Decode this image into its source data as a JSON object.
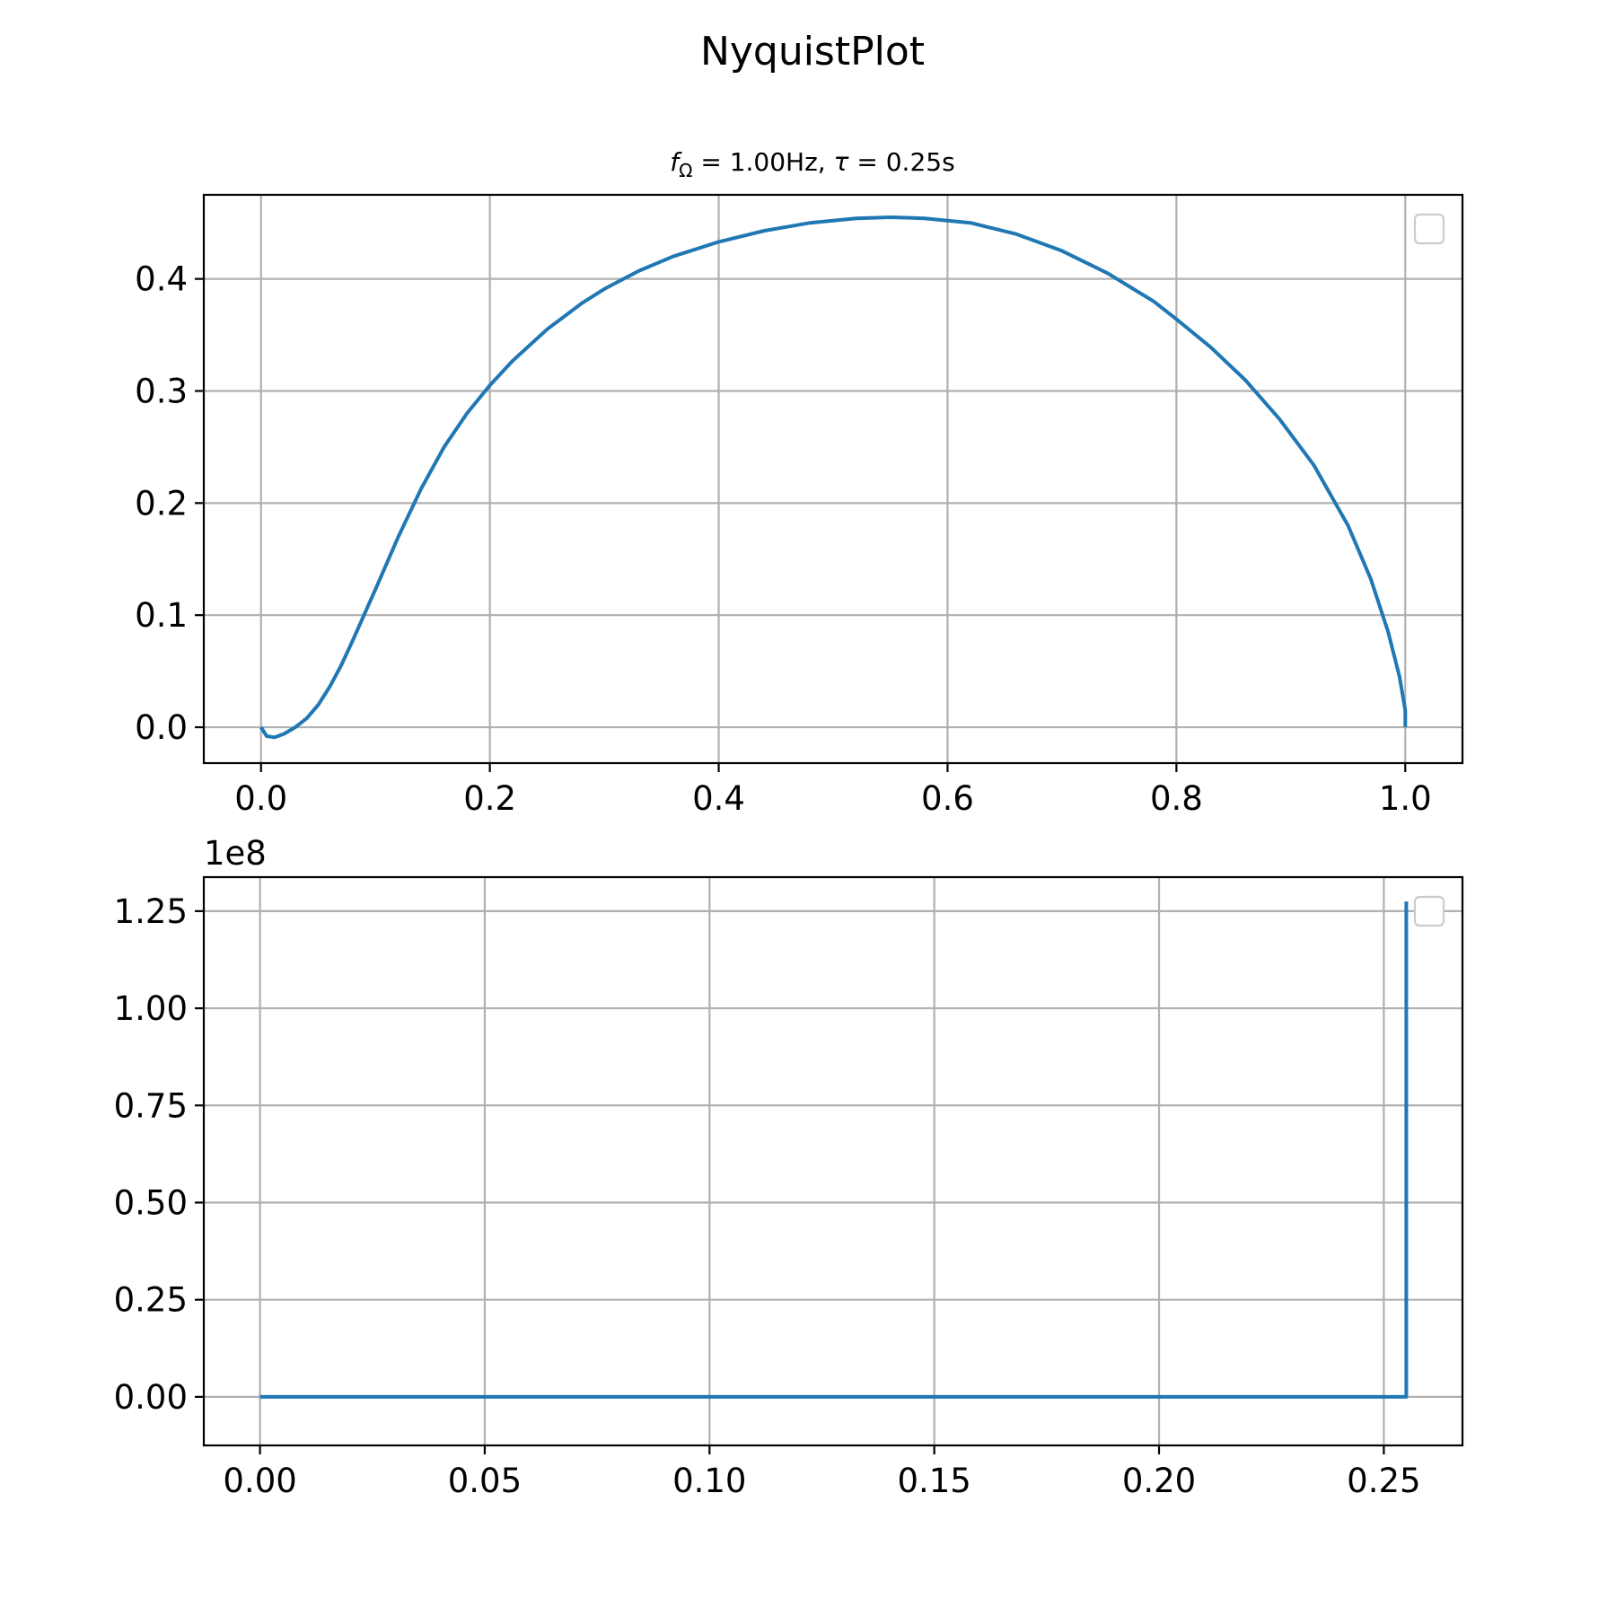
{
  "figure": {
    "title": "NyquistPlot",
    "subtitle": "f_Ω = 1.00Hz, τ = 0.25s",
    "subtitle_parts": {
      "f": "f",
      "f_sub": "Ω",
      "f_rest": " = 1.00Hz, ",
      "tau": "τ",
      "tau_rest": " = 0.25s"
    }
  },
  "chart_data": [
    {
      "type": "line",
      "title": "f_Ω = 1.00Hz, τ = 0.25s",
      "xlabel": "",
      "ylabel": "",
      "xlim": [
        -0.05,
        1.05
      ],
      "ylim": [
        -0.032,
        0.475
      ],
      "xticks": [
        0.0,
        0.2,
        0.4,
        0.6,
        0.8,
        1.0
      ],
      "xtick_labels": [
        "0.0",
        "0.2",
        "0.4",
        "0.6",
        "0.8",
        "1.0"
      ],
      "yticks": [
        0.0,
        0.1,
        0.2,
        0.3,
        0.4
      ],
      "ytick_labels": [
        "0.0",
        "0.1",
        "0.2",
        "0.3",
        "0.4"
      ],
      "grid": true,
      "legend": "top-right (empty)",
      "color": "#1f77b4",
      "series": [
        {
          "x": [
            0.0,
            0.005,
            0.012,
            0.02,
            0.03,
            0.04,
            0.05,
            0.06,
            0.07,
            0.08,
            0.09,
            0.1,
            0.12,
            0.14,
            0.16,
            0.18,
            0.2,
            0.22,
            0.25,
            0.28,
            0.3,
            0.33,
            0.36,
            0.4,
            0.44,
            0.48,
            0.52,
            0.55,
            0.58,
            0.62,
            0.66,
            0.7,
            0.74,
            0.78,
            0.8,
            0.83,
            0.86,
            0.89,
            0.92,
            0.95,
            0.97,
            0.985,
            0.995,
            1.0,
            1.0
          ],
          "y": [
            0.0,
            -0.008,
            -0.009,
            -0.006,
            0.0,
            0.008,
            0.02,
            0.036,
            0.055,
            0.077,
            0.1,
            0.123,
            0.17,
            0.213,
            0.25,
            0.28,
            0.305,
            0.327,
            0.355,
            0.378,
            0.391,
            0.407,
            0.42,
            0.433,
            0.443,
            0.45,
            0.454,
            0.455,
            0.454,
            0.45,
            0.44,
            0.425,
            0.405,
            0.38,
            0.364,
            0.339,
            0.31,
            0.275,
            0.234,
            0.18,
            0.132,
            0.085,
            0.045,
            0.015,
            0.0
          ]
        }
      ]
    },
    {
      "type": "line",
      "title": "",
      "xlabel": "",
      "ylabel": "",
      "offset_label": "1e8",
      "xlim": [
        -0.0125,
        0.2675
      ],
      "ylim": [
        -0.125,
        1.3375
      ],
      "xticks": [
        0.0,
        0.05,
        0.1,
        0.15,
        0.2,
        0.25
      ],
      "xtick_labels": [
        "0.00",
        "0.05",
        "0.10",
        "0.15",
        "0.20",
        "0.25"
      ],
      "yticks": [
        0.0,
        0.25,
        0.5,
        0.75,
        1.0,
        1.25
      ],
      "ytick_labels": [
        "0.00",
        "0.25",
        "0.50",
        "0.75",
        "1.00",
        "1.25"
      ],
      "grid": true,
      "legend": "top-right (empty)",
      "color": "#1f77b4",
      "series": [
        {
          "x": [
            0.0,
            0.255,
            0.255
          ],
          "y": [
            0.0,
            0.0,
            1.275
          ]
        }
      ]
    }
  ]
}
